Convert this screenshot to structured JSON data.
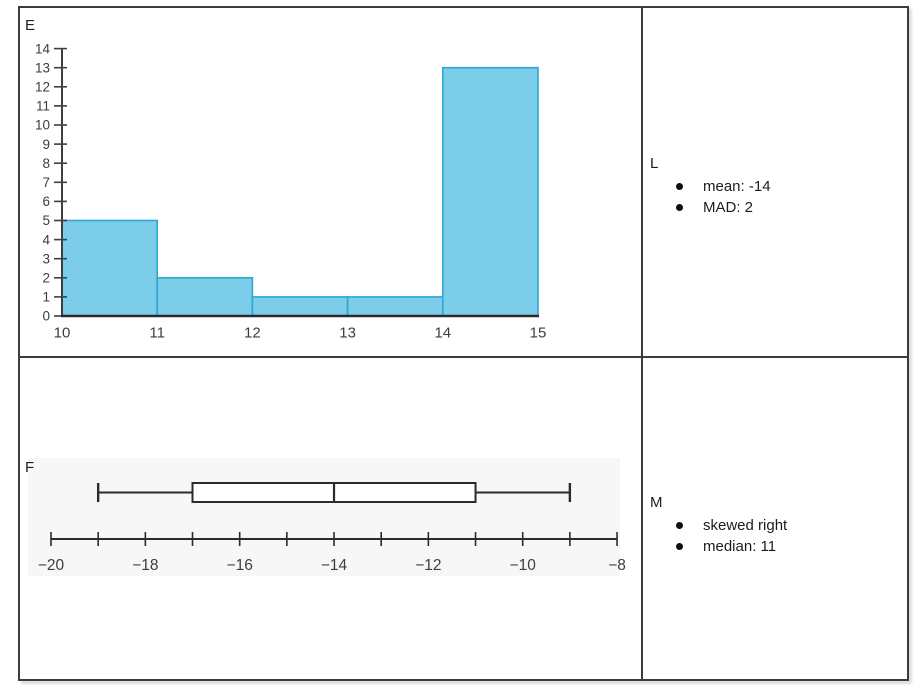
{
  "table": {
    "cells": {
      "histogram": {
        "label": "E"
      },
      "stats_top": {
        "label": "L",
        "items": [
          "mean: -14",
          "MAD: 2"
        ]
      },
      "boxplot": {
        "label": "F"
      },
      "stats_bottom": {
        "label": "M",
        "items": [
          "skewed right",
          "median: 11"
        ]
      }
    }
  },
  "chart_data": [
    {
      "type": "bar",
      "subtype": "histogram",
      "panel_label": "E",
      "bin_edges": [
        10,
        11,
        12,
        13,
        14,
        15
      ],
      "values": [
        5,
        2,
        1,
        1,
        13
      ],
      "x_tick_labels": [
        "10",
        "11",
        "12",
        "13",
        "14",
        "15"
      ],
      "y_tick_labels": [
        "0",
        "1",
        "2",
        "3",
        "4",
        "5",
        "6",
        "7",
        "8",
        "9",
        "10",
        "11",
        "12",
        "13",
        "14"
      ],
      "xlim": [
        10,
        15
      ],
      "ylim": [
        0,
        14
      ],
      "grid": false,
      "legend": "none",
      "bar_fill": "#7bcde9",
      "bar_stroke": "#2da7d4"
    },
    {
      "type": "boxplot",
      "panel_label": "F",
      "min": -19,
      "q1": -17,
      "median": -14,
      "q3": -11,
      "max": -9,
      "axis_min": -20,
      "axis_max": -8,
      "tick_step": 1,
      "label_step": 2,
      "x_tick_labels": [
        "−20",
        "−18",
        "−16",
        "−14",
        "−12",
        "−10",
        "−8"
      ]
    }
  ],
  "colors": {
    "axis": "#3f3f3f",
    "x_axis": "#2b2b2b",
    "tick_text": "#3d3d3d",
    "table_border": "#3c3c3c",
    "bar_fill": "#7bcde9",
    "bar_stroke": "#2da7d4",
    "boxplot_line": "#2b2b2b",
    "boxplot_panel_bg": "#f7f7f7"
  }
}
